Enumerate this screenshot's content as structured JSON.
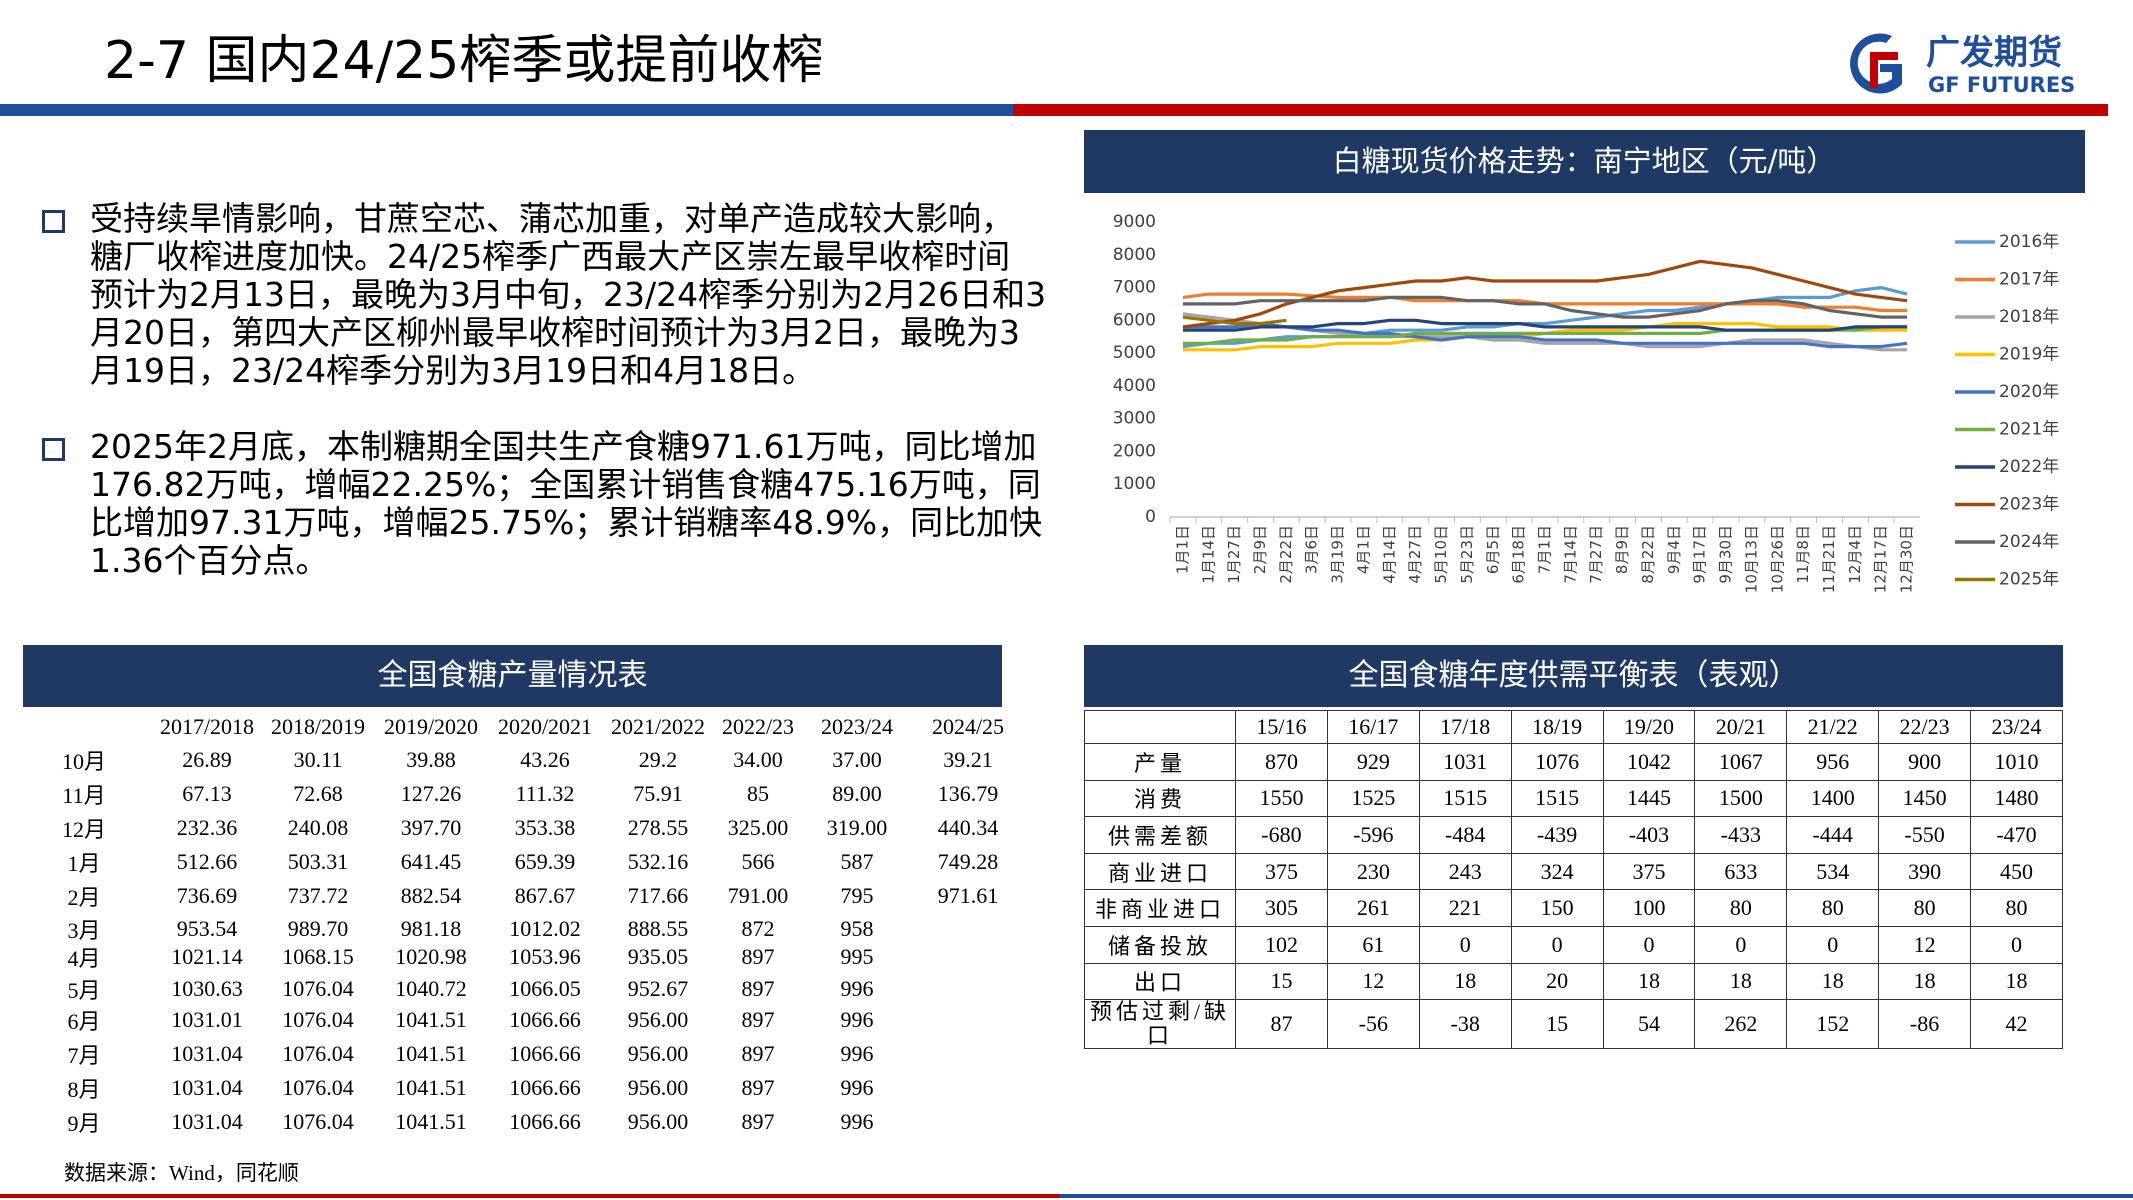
{
  "header": {
    "title": "2-7  国内24/25榨季或提前收榨"
  },
  "logo": {
    "name": "广发期货",
    "name_en": "GF FUTURES"
  },
  "bullets": [
    {
      "lines": [
        "受持续旱情影响，甘蔗空芯、蒲芯加重，对单产造成较大影响，",
        "糖厂收榨进度加快。24/25榨季广西最大产区崇左最早收榨时间",
        "预计为2月13日，最晚为3月中旬，23/24榨季分别为2月26日和3",
        "月20日，第四大产区柳州最早收榨时间预计为3月2日，最晚为3",
        "月19日，23/24榨季分别为3月19日和4月18日。"
      ]
    },
    {
      "lines": [
        "2025年2月底，本制糖期全国共生产食糖971.61万吨，同比增加",
        "176.82万吨，增幅22.25%；全国累计销售食糖475.16万吨，同",
        "比增加97.31万吨，增幅25.75%；累计销糖率48.9%，同比加快",
        "1.36个百分点。"
      ]
    }
  ],
  "chart_data": {
    "type": "line",
    "title": "白糖现货价格走势：南宁地区（元/吨）",
    "categories": [
      "1月1日",
      "1月14日",
      "1月27日",
      "2月9日",
      "2月22日",
      "3月6日",
      "3月19日",
      "4月1日",
      "4月14日",
      "4月27日",
      "5月10日",
      "5月23日",
      "6月5日",
      "6月18日",
      "7月1日",
      "7月14日",
      "7月27日",
      "8月9日",
      "8月22日",
      "9月4日",
      "9月17日",
      "9月30日",
      "10月13日",
      "10月26日",
      "11月8日",
      "11月21日",
      "12月4日",
      "12月17日",
      "12月30日"
    ],
    "series": [
      {
        "name": "2016年",
        "color": "#5b9bd5",
        "values": [
          5200,
          5300,
          5300,
          5400,
          5500,
          5500,
          5500,
          5600,
          5700,
          5700,
          5700,
          5800,
          5800,
          5900,
          5900,
          6000,
          6100,
          6200,
          6300,
          6300,
          6400,
          6500,
          6600,
          6700,
          6700,
          6700,
          6900,
          7000,
          6800
        ]
      },
      {
        "name": "2017年",
        "color": "#ed7d31",
        "values": [
          6700,
          6800,
          6800,
          6800,
          6800,
          6750,
          6700,
          6700,
          6700,
          6600,
          6600,
          6600,
          6600,
          6600,
          6500,
          6500,
          6500,
          6500,
          6500,
          6500,
          6500,
          6500,
          6500,
          6500,
          6400,
          6400,
          6400,
          6300,
          6300
        ]
      },
      {
        "name": "2018年",
        "color": "#a5a5a5",
        "values": [
          6200,
          6100,
          6000,
          5900,
          5800,
          5700,
          5600,
          5600,
          5500,
          5500,
          5500,
          5500,
          5400,
          5400,
          5300,
          5300,
          5300,
          5300,
          5200,
          5200,
          5200,
          5300,
          5400,
          5400,
          5400,
          5300,
          5200,
          5100,
          5100
        ]
      },
      {
        "name": "2019年",
        "color": "#ffc000",
        "values": [
          5100,
          5100,
          5100,
          5200,
          5200,
          5200,
          5300,
          5300,
          5300,
          5400,
          5400,
          5500,
          5500,
          5500,
          5600,
          5700,
          5700,
          5700,
          5800,
          5900,
          5900,
          5900,
          5900,
          5800,
          5800,
          5800,
          5700,
          5700,
          5700
        ]
      },
      {
        "name": "2020年",
        "color": "#4472c4",
        "values": [
          5800,
          5800,
          5800,
          5900,
          5800,
          5700,
          5700,
          5600,
          5600,
          5500,
          5400,
          5500,
          5500,
          5500,
          5400,
          5400,
          5400,
          5300,
          5300,
          5300,
          5300,
          5300,
          5300,
          5300,
          5300,
          5200,
          5200,
          5200,
          5300
        ]
      },
      {
        "name": "2021年",
        "color": "#70ad47",
        "values": [
          5300,
          5300,
          5400,
          5400,
          5400,
          5500,
          5500,
          5500,
          5500,
          5600,
          5600,
          5600,
          5600,
          5600,
          5600,
          5600,
          5600,
          5600,
          5600,
          5600,
          5600,
          5700,
          5700,
          5700,
          5700,
          5700,
          5700,
          5800,
          5800
        ]
      },
      {
        "name": "2022年",
        "color": "#264478",
        "values": [
          5700,
          5700,
          5700,
          5800,
          5800,
          5800,
          5900,
          5900,
          6000,
          6000,
          5900,
          5900,
          5900,
          5900,
          5800,
          5800,
          5800,
          5800,
          5800,
          5800,
          5800,
          5700,
          5700,
          5700,
          5700,
          5700,
          5800,
          5800,
          5800
        ]
      },
      {
        "name": "2023年",
        "color": "#9e480e",
        "values": [
          5800,
          5900,
          6000,
          6200,
          6500,
          6700,
          6900,
          7000,
          7100,
          7200,
          7200,
          7300,
          7200,
          7200,
          7200,
          7200,
          7200,
          7300,
          7400,
          7600,
          7800,
          7700,
          7600,
          7400,
          7200,
          7000,
          6800,
          6700,
          6600
        ]
      },
      {
        "name": "2024年",
        "color": "#636363",
        "values": [
          6500,
          6500,
          6500,
          6600,
          6600,
          6600,
          6600,
          6600,
          6700,
          6700,
          6700,
          6600,
          6600,
          6500,
          6500,
          6300,
          6200,
          6100,
          6100,
          6200,
          6300,
          6500,
          6600,
          6600,
          6500,
          6300,
          6200,
          6100,
          6100
        ]
      },
      {
        "name": "2025年",
        "color": "#997300",
        "values": [
          6100,
          6000,
          5900,
          5900,
          6000,
          null,
          null,
          null,
          null,
          null,
          null,
          null,
          null,
          null,
          null,
          null,
          null,
          null,
          null,
          null,
          null,
          null,
          null,
          null,
          null,
          null,
          null,
          null,
          null
        ]
      }
    ],
    "ylim": [
      0,
      9000
    ],
    "yticks": [
      0,
      1000,
      2000,
      3000,
      4000,
      5000,
      6000,
      7000,
      8000,
      9000
    ],
    "legend": "right"
  },
  "production_table": {
    "title": "全国食糖产量情况表",
    "columns": [
      "2017/2018",
      "2018/2019",
      "2019/2020",
      "2020/2021",
      "2021/2022",
      "2022/23",
      "2023/24",
      "2024/25"
    ],
    "rows": [
      {
        "label": "10月",
        "values": [
          "26.89",
          "30.11",
          "39.88",
          "43.26",
          "29.2",
          "34.00",
          "37.00",
          "39.21"
        ]
      },
      {
        "label": "11月",
        "values": [
          "67.13",
          "72.68",
          "127.26",
          "111.32",
          "75.91",
          "85",
          "89.00",
          "136.79"
        ]
      },
      {
        "label": "12月",
        "values": [
          "232.36",
          "240.08",
          "397.70",
          "353.38",
          "278.55",
          "325.00",
          "319.00",
          "440.34"
        ]
      },
      {
        "label": "1月",
        "values": [
          "512.66",
          "503.31",
          "641.45",
          "659.39",
          "532.16",
          "566",
          "587",
          "749.28"
        ]
      },
      {
        "label": "2月",
        "values": [
          "736.69",
          "737.72",
          "882.54",
          "867.67",
          "717.66",
          "791.00",
          "795",
          "971.61"
        ]
      },
      {
        "label": "3月",
        "values": [
          "953.54",
          "989.70",
          "981.18",
          "1012.02",
          "888.55",
          "872",
          "958"
        ]
      },
      {
        "label": "4月",
        "values": [
          "1021.14",
          "1068.15",
          "1020.98",
          "1053.96",
          "935.05",
          "897",
          "995"
        ]
      },
      {
        "label": "5月",
        "values": [
          "1030.63",
          "1076.04",
          "1040.72",
          "1066.05",
          "952.67",
          "897",
          "996"
        ]
      },
      {
        "label": "6月",
        "values": [
          "1031.01",
          "1076.04",
          "1041.51",
          "1066.66",
          "956.00",
          "897",
          "996"
        ]
      },
      {
        "label": "7月",
        "values": [
          "1031.04",
          "1076.04",
          "1041.51",
          "1066.66",
          "956.00",
          "897",
          "996"
        ]
      },
      {
        "label": "8月",
        "values": [
          "1031.04",
          "1076.04",
          "1041.51",
          "1066.66",
          "956.00",
          "897",
          "996"
        ]
      },
      {
        "label": "9月",
        "values": [
          "1031.04",
          "1076.04",
          "1041.51",
          "1066.66",
          "956.00",
          "897",
          "996"
        ]
      }
    ]
  },
  "balance_table": {
    "title": "全国食糖年度供需平衡表（表观）",
    "columns": [
      "15/16",
      "16/17",
      "17/18",
      "18/19",
      "19/20",
      "20/21",
      "21/22",
      "22/23",
      "23/24"
    ],
    "rows": [
      {
        "label": "产量",
        "values": [
          "870",
          "929",
          "1031",
          "1076",
          "1042",
          "1067",
          "956",
          "900",
          "1010"
        ]
      },
      {
        "label": "消费",
        "values": [
          "1550",
          "1525",
          "1515",
          "1515",
          "1445",
          "1500",
          "1400",
          "1450",
          "1480"
        ]
      },
      {
        "label": "供需差额",
        "values": [
          "-680",
          "-596",
          "-484",
          "-439",
          "-403",
          "-433",
          "-444",
          "-550",
          "-470"
        ]
      },
      {
        "label": "商业进口",
        "values": [
          "375",
          "230",
          "243",
          "324",
          "375",
          "633",
          "534",
          "390",
          "450"
        ]
      },
      {
        "label": "非商业进口",
        "values": [
          "305",
          "261",
          "221",
          "150",
          "100",
          "80",
          "80",
          "80",
          "80"
        ]
      },
      {
        "label": "储备投放",
        "values": [
          "102",
          "61",
          "0",
          "0",
          "0",
          "0",
          "0",
          "12",
          "0"
        ]
      },
      {
        "label": "出口",
        "values": [
          "15",
          "12",
          "18",
          "20",
          "18",
          "18",
          "18",
          "18",
          "18"
        ]
      },
      {
        "label": "预估过剩/缺口",
        "values": [
          "87",
          "-56",
          "-38",
          "15",
          "54",
          "262",
          "152",
          "-86",
          "42"
        ]
      }
    ]
  },
  "source": "数据来源：Wind，同花顺"
}
